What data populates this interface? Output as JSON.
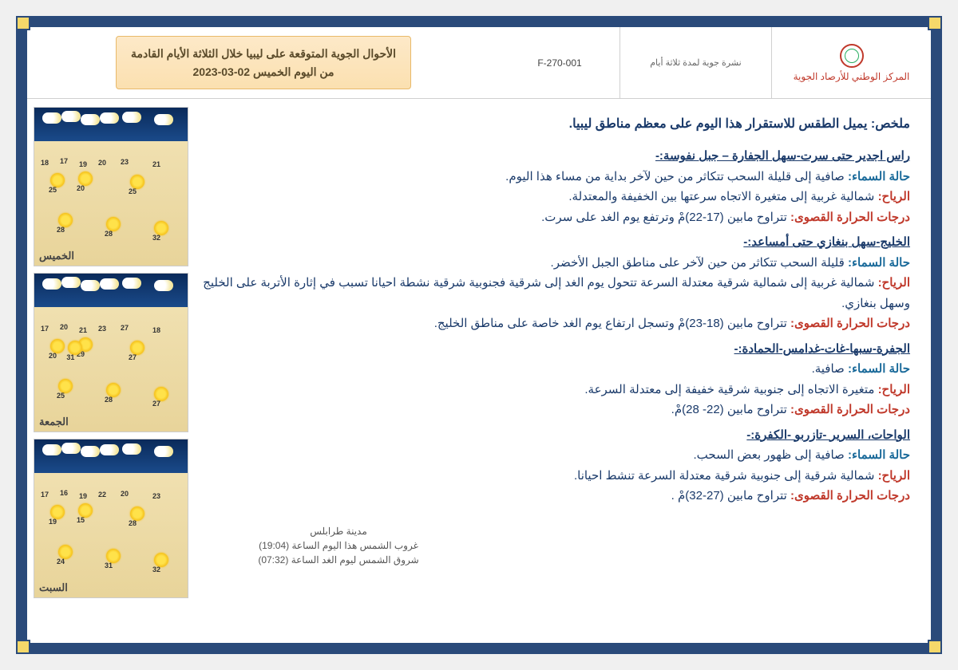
{
  "header": {
    "org": "المركز الوطني للأرصاد الجوية",
    "bulletin_type": "نشرة جوية لمدة ثلاثة أيام",
    "doc_code": "F-270-001",
    "title_line1": "الأحوال الجوية المتوقعة على ليبيا خلال الثلاثة الأيام القادمة",
    "title_line2": "من اليوم الخميس 02-03-2023"
  },
  "summary": "ملخص: يميل الطقس للاستقرار هذا اليوم على معظم مناطق ليبيا.",
  "regions": [
    {
      "title": "راس اجدير حتى سرت-سهل الجفارة – جبل نفوسة:-",
      "sky": "صافية إلى قليلة السحب تتكاثر من حين لآخر بداية من مساء هذا اليوم.",
      "wind": "شمالية غربية إلى متغيرة الاتجاه سرعتها بين الخفيفة والمعتدلة.",
      "temp": "تتراوح مابين (17-22)مْ وترتفع يوم الغد على سرت."
    },
    {
      "title": "الخليج-سهل بنغازي حتى أمساعد:-",
      "sky": "قليلة السحب تتكاثر من حين لآخر على مناطق الجبل الأخضر.",
      "wind": "شمالية غربية إلى شمالية شرقية معتدلة السرعة تتحول يوم الغد إلى شرقية فجنوبية شرقية نشطة احيانا تسبب في إثارة الأتربة على الخليج وسهل بنغازي.",
      "temp": "تتراوح مابين (18-23)مْ وتسجل ارتفاع يوم الغد خاصة على مناطق الخليج."
    },
    {
      "title": "الجفرة-سبها-غات-غدامس-الحمادة:-",
      "sky": "صافية.",
      "wind": "متغيرة الاتجاه إلى جنوبية شرقية خفيفة إلى معتدلة السرعة.",
      "temp": "تتراوح مابين (22- 28)مْ."
    },
    {
      "title": "الواحات، السرير -تازربو -الكفرة:-",
      "sky": "صافية إلى ظهور بعض السحب.",
      "wind": "شمالية شرقية إلى جنوبية شرقية معتدلة السرعة تنشط احيانا.",
      "temp": "تتراوح مابين (27-32)مْ ."
    }
  ],
  "labels": {
    "sky": "حالة السماء:",
    "wind": "الرياح:",
    "temp": "درجات الحرارة القصوى:"
  },
  "sun": {
    "city": "مدينة طرابلس",
    "sunset": "غروب الشمس هذا اليوم الساعة (19:04)",
    "sunrise": "شروق الشمس ليوم الغد الساعة (07:32)"
  },
  "maps": [
    {
      "day": "الخميس",
      "temps": [
        "18",
        "17",
        "19",
        "20",
        "23",
        "21",
        "25",
        "20",
        "25",
        "28",
        "28",
        "32"
      ]
    },
    {
      "day": "الجمعة",
      "temps": [
        "17",
        "20",
        "21",
        "23",
        "27",
        "18",
        "20",
        "29",
        "27",
        "25",
        "28",
        "27",
        "31"
      ]
    },
    {
      "day": "السبت",
      "temps": [
        "17",
        "16",
        "19",
        "22",
        "20",
        "23",
        "19",
        "15",
        "28",
        "24",
        "31",
        "32"
      ]
    }
  ],
  "colors": {
    "frame": "#2a4a7a",
    "accent": "#f5d86a",
    "title_bg_top": "#fde9c8",
    "title_bg_bot": "#fbe0b0",
    "sea": "#0a2a5a",
    "land": "#f0e0b0"
  }
}
